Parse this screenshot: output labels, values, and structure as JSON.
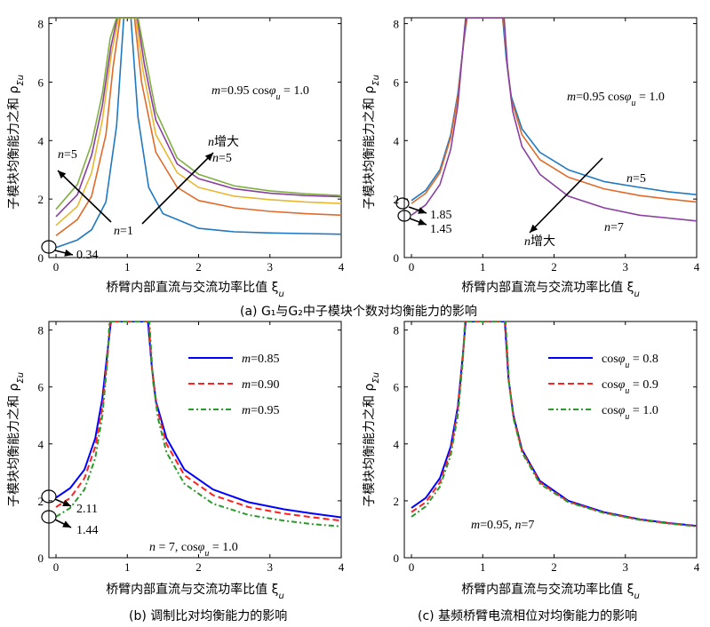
{
  "captions": {
    "a": "(a) G₁与G₂中子模块个数对均衡能力的影响",
    "b": "(b) 调制比对均衡能力的影响",
    "c": "(c) 基频桥臂电流相位对均衡能力的影响"
  },
  "axes": {
    "xlabel": "桥臂内部直流与交流功率比值 ξ",
    "xlabel_sub": "u",
    "ylabel": "子模块均衡能力之和 ρ",
    "ylabel_sub": "Σu"
  },
  "colors": {
    "blue_a": "#1f78c0",
    "orange_a": "#e06a2a",
    "yellow_a": "#e8b830",
    "purple_a": "#8a3fa0",
    "green_a": "#80b040",
    "blue_b": "#0000ff",
    "red_b": "#ff2020",
    "green_b": "#2a9a2a"
  },
  "chart_data": [
    {
      "id": "a-left",
      "type": "line",
      "xlim": [
        -0.1,
        4
      ],
      "ylim": [
        0,
        8.2
      ],
      "xticks": [
        "0",
        "1",
        "2",
        "3",
        "4"
      ],
      "yticks": [
        "0",
        "2",
        "4",
        "6",
        "8"
      ],
      "series": [
        {
          "n": 1,
          "x": [
            0,
            0.3,
            0.5,
            0.7,
            0.85,
            0.95,
            1.05,
            1.15,
            1.3,
            1.5,
            2,
            2.5,
            3,
            3.5,
            4
          ],
          "y": [
            0.34,
            0.6,
            0.95,
            1.9,
            4.5,
            8.2,
            8.2,
            4.8,
            2.4,
            1.5,
            1.0,
            0.88,
            0.84,
            0.82,
            0.8
          ]
        },
        {
          "n": 2,
          "x": [
            0,
            0.3,
            0.5,
            0.7,
            0.8,
            0.9,
            1.1,
            1.2,
            1.4,
            1.7,
            2,
            2.5,
            3,
            3.5,
            4
          ],
          "y": [
            0.75,
            1.3,
            2.1,
            4.2,
            6.5,
            8.2,
            8.2,
            6.0,
            3.6,
            2.4,
            1.95,
            1.7,
            1.58,
            1.5,
            1.45
          ]
        },
        {
          "n": 3,
          "x": [
            0,
            0.3,
            0.5,
            0.65,
            0.78,
            0.88,
            1.12,
            1.22,
            1.4,
            1.7,
            2,
            2.5,
            3,
            3.5,
            4
          ],
          "y": [
            1.1,
            1.75,
            2.9,
            4.7,
            7.0,
            8.2,
            8.2,
            6.4,
            4.2,
            2.9,
            2.4,
            2.1,
            1.98,
            1.9,
            1.85
          ]
        },
        {
          "n": 4,
          "x": [
            0,
            0.3,
            0.5,
            0.65,
            0.77,
            0.86,
            1.14,
            1.24,
            1.4,
            1.7,
            2,
            2.5,
            3,
            3.5,
            4
          ],
          "y": [
            1.4,
            2.15,
            3.5,
            5.2,
            7.2,
            8.2,
            8.2,
            6.6,
            4.7,
            3.2,
            2.7,
            2.35,
            2.2,
            2.12,
            2.08
          ]
        },
        {
          "n": 5,
          "x": [
            0,
            0.3,
            0.5,
            0.65,
            0.76,
            0.85,
            1.15,
            1.25,
            1.4,
            1.7,
            2,
            2.5,
            3,
            3.5,
            4
          ],
          "y": [
            1.65,
            2.5,
            3.9,
            5.6,
            7.5,
            8.2,
            8.2,
            6.9,
            5.0,
            3.4,
            2.85,
            2.45,
            2.28,
            2.18,
            2.12
          ]
        }
      ],
      "annotations": {
        "m_cos": "m=0.95 cosφ",
        "m_cos_sub": "u",
        "m_cos_val": " = 1.0",
        "n5": "n=5",
        "n_inc": "n增大",
        "n5b": "n=5",
        "n1": "n=1",
        "v034": "0.34"
      }
    },
    {
      "id": "a-right",
      "type": "line",
      "xlim": [
        -0.1,
        4
      ],
      "ylim": [
        0,
        8.2
      ],
      "xticks": [
        "0",
        "1",
        "2",
        "3",
        "4"
      ],
      "yticks": [
        "0",
        "2",
        "4",
        "6",
        "8"
      ],
      "series": [
        {
          "n": 5,
          "x": [
            0,
            0.2,
            0.4,
            0.55,
            0.65,
            0.73,
            0.78,
            1.28,
            1.33,
            1.4,
            1.55,
            1.8,
            2.2,
            2.7,
            3.2,
            3.6,
            4
          ],
          "y": [
            1.95,
            2.3,
            3.0,
            4.2,
            5.6,
            7.3,
            8.2,
            8.2,
            6.8,
            5.5,
            4.4,
            3.6,
            3.0,
            2.6,
            2.4,
            2.25,
            2.15
          ]
        },
        {
          "n": 6,
          "x": [
            0,
            0.2,
            0.4,
            0.55,
            0.65,
            0.73,
            0.77,
            1.29,
            1.34,
            1.4,
            1.55,
            1.8,
            2.2,
            2.7,
            3.2,
            3.6,
            4
          ],
          "y": [
            1.85,
            2.2,
            2.9,
            4.1,
            5.5,
            7.3,
            8.2,
            8.2,
            6.7,
            5.4,
            4.2,
            3.35,
            2.75,
            2.35,
            2.12,
            2.0,
            1.9
          ]
        },
        {
          "n": 7,
          "x": [
            0,
            0.2,
            0.4,
            0.55,
            0.65,
            0.73,
            0.76,
            1.3,
            1.35,
            1.42,
            1.55,
            1.8,
            2.2,
            2.7,
            3.2,
            3.6,
            4
          ],
          "y": [
            1.45,
            1.8,
            2.5,
            3.7,
            5.2,
            7.4,
            8.2,
            8.2,
            6.4,
            5.0,
            3.8,
            2.85,
            2.1,
            1.7,
            1.45,
            1.35,
            1.25
          ]
        }
      ],
      "annotations": {
        "m_cos": "m=0.95 cosφ",
        "m_cos_sub": "u",
        "m_cos_val": " = 1.0",
        "n5": "n=5",
        "n7": "n=7",
        "n_inc": "n增大",
        "v185": "1.85",
        "v145": "1.45"
      }
    },
    {
      "id": "b",
      "type": "line",
      "xlim": [
        -0.1,
        4
      ],
      "ylim": [
        0,
        8.3
      ],
      "xticks": [
        "0",
        "1",
        "2",
        "3",
        "4"
      ],
      "yticks": [
        "0",
        "2",
        "4",
        "6",
        "8"
      ],
      "series": [
        {
          "name": "m=0.85",
          "x": [
            0,
            0.2,
            0.4,
            0.55,
            0.65,
            0.72,
            0.77,
            1.29,
            1.34,
            1.4,
            1.55,
            1.8,
            2.2,
            2.7,
            3.2,
            3.6,
            4
          ],
          "y": [
            2.11,
            2.45,
            3.1,
            4.2,
            5.6,
            7.2,
            8.3,
            8.3,
            6.8,
            5.5,
            4.2,
            3.1,
            2.4,
            1.95,
            1.7,
            1.55,
            1.42
          ]
        },
        {
          "name": "m=0.90",
          "x": [
            0,
            0.2,
            0.4,
            0.55,
            0.65,
            0.72,
            0.76,
            1.3,
            1.35,
            1.42,
            1.55,
            1.8,
            2.2,
            2.7,
            3.2,
            3.6,
            4
          ],
          "y": [
            1.78,
            2.1,
            2.8,
            3.9,
            5.3,
            7.0,
            8.3,
            8.3,
            6.5,
            5.2,
            4.0,
            2.9,
            2.2,
            1.78,
            1.55,
            1.42,
            1.3
          ]
        },
        {
          "name": "m=0.95",
          "x": [
            0,
            0.2,
            0.4,
            0.55,
            0.65,
            0.72,
            0.75,
            1.31,
            1.36,
            1.43,
            1.55,
            1.8,
            2.2,
            2.7,
            3.2,
            3.6,
            4
          ],
          "y": [
            1.44,
            1.75,
            2.4,
            3.5,
            5.0,
            6.9,
            8.3,
            8.3,
            6.2,
            4.9,
            3.7,
            2.6,
            1.9,
            1.5,
            1.3,
            1.18,
            1.1
          ]
        }
      ],
      "legend": [
        "m=0.85",
        "m=0.90",
        "m=0.95"
      ],
      "annotations": {
        "v211": "2.11",
        "v144": "1.44",
        "params": "n = 7, cosφ",
        "params_sub": "u",
        "params_val": " = 1.0"
      }
    },
    {
      "id": "c",
      "type": "line",
      "xlim": [
        -0.1,
        4
      ],
      "ylim": [
        0,
        8.3
      ],
      "xticks": [
        "0",
        "1",
        "2",
        "3",
        "4"
      ],
      "yticks": [
        "0",
        "2",
        "4",
        "6",
        "8"
      ],
      "series": [
        {
          "name": "cosφu = 0.8",
          "x": [
            0,
            0.2,
            0.4,
            0.55,
            0.65,
            0.72,
            0.76,
            1.31,
            1.36,
            1.43,
            1.55,
            1.8,
            2.2,
            2.7,
            3.2,
            3.6,
            4
          ],
          "y": [
            1.75,
            2.1,
            2.8,
            3.9,
            5.3,
            7.1,
            8.3,
            8.3,
            6.3,
            5.0,
            3.8,
            2.7,
            2.0,
            1.6,
            1.35,
            1.22,
            1.12
          ]
        },
        {
          "name": "cosφu = 0.9",
          "x": [
            0,
            0.2,
            0.4,
            0.55,
            0.65,
            0.72,
            0.755,
            1.315,
            1.365,
            1.43,
            1.55,
            1.8,
            2.2,
            2.7,
            3.2,
            3.6,
            4
          ],
          "y": [
            1.6,
            1.95,
            2.65,
            3.75,
            5.2,
            7.0,
            8.3,
            8.3,
            6.2,
            4.95,
            3.75,
            2.65,
            1.97,
            1.58,
            1.34,
            1.21,
            1.11
          ]
        },
        {
          "name": "cosφu = 1.0",
          "x": [
            0,
            0.2,
            0.4,
            0.55,
            0.65,
            0.72,
            0.75,
            1.32,
            1.37,
            1.43,
            1.55,
            1.8,
            2.2,
            2.7,
            3.2,
            3.6,
            4
          ],
          "y": [
            1.44,
            1.8,
            2.5,
            3.6,
            5.0,
            6.9,
            8.3,
            8.3,
            6.1,
            4.9,
            3.7,
            2.6,
            1.95,
            1.57,
            1.33,
            1.2,
            1.1
          ]
        }
      ],
      "legend": [
        "cosφ",
        "cosφ",
        "cosφ"
      ],
      "legend_vals": [
        " = 0.8",
        " = 0.9",
        " = 1.0"
      ],
      "annotations": {
        "params": "m=0.95, n=7"
      }
    }
  ]
}
